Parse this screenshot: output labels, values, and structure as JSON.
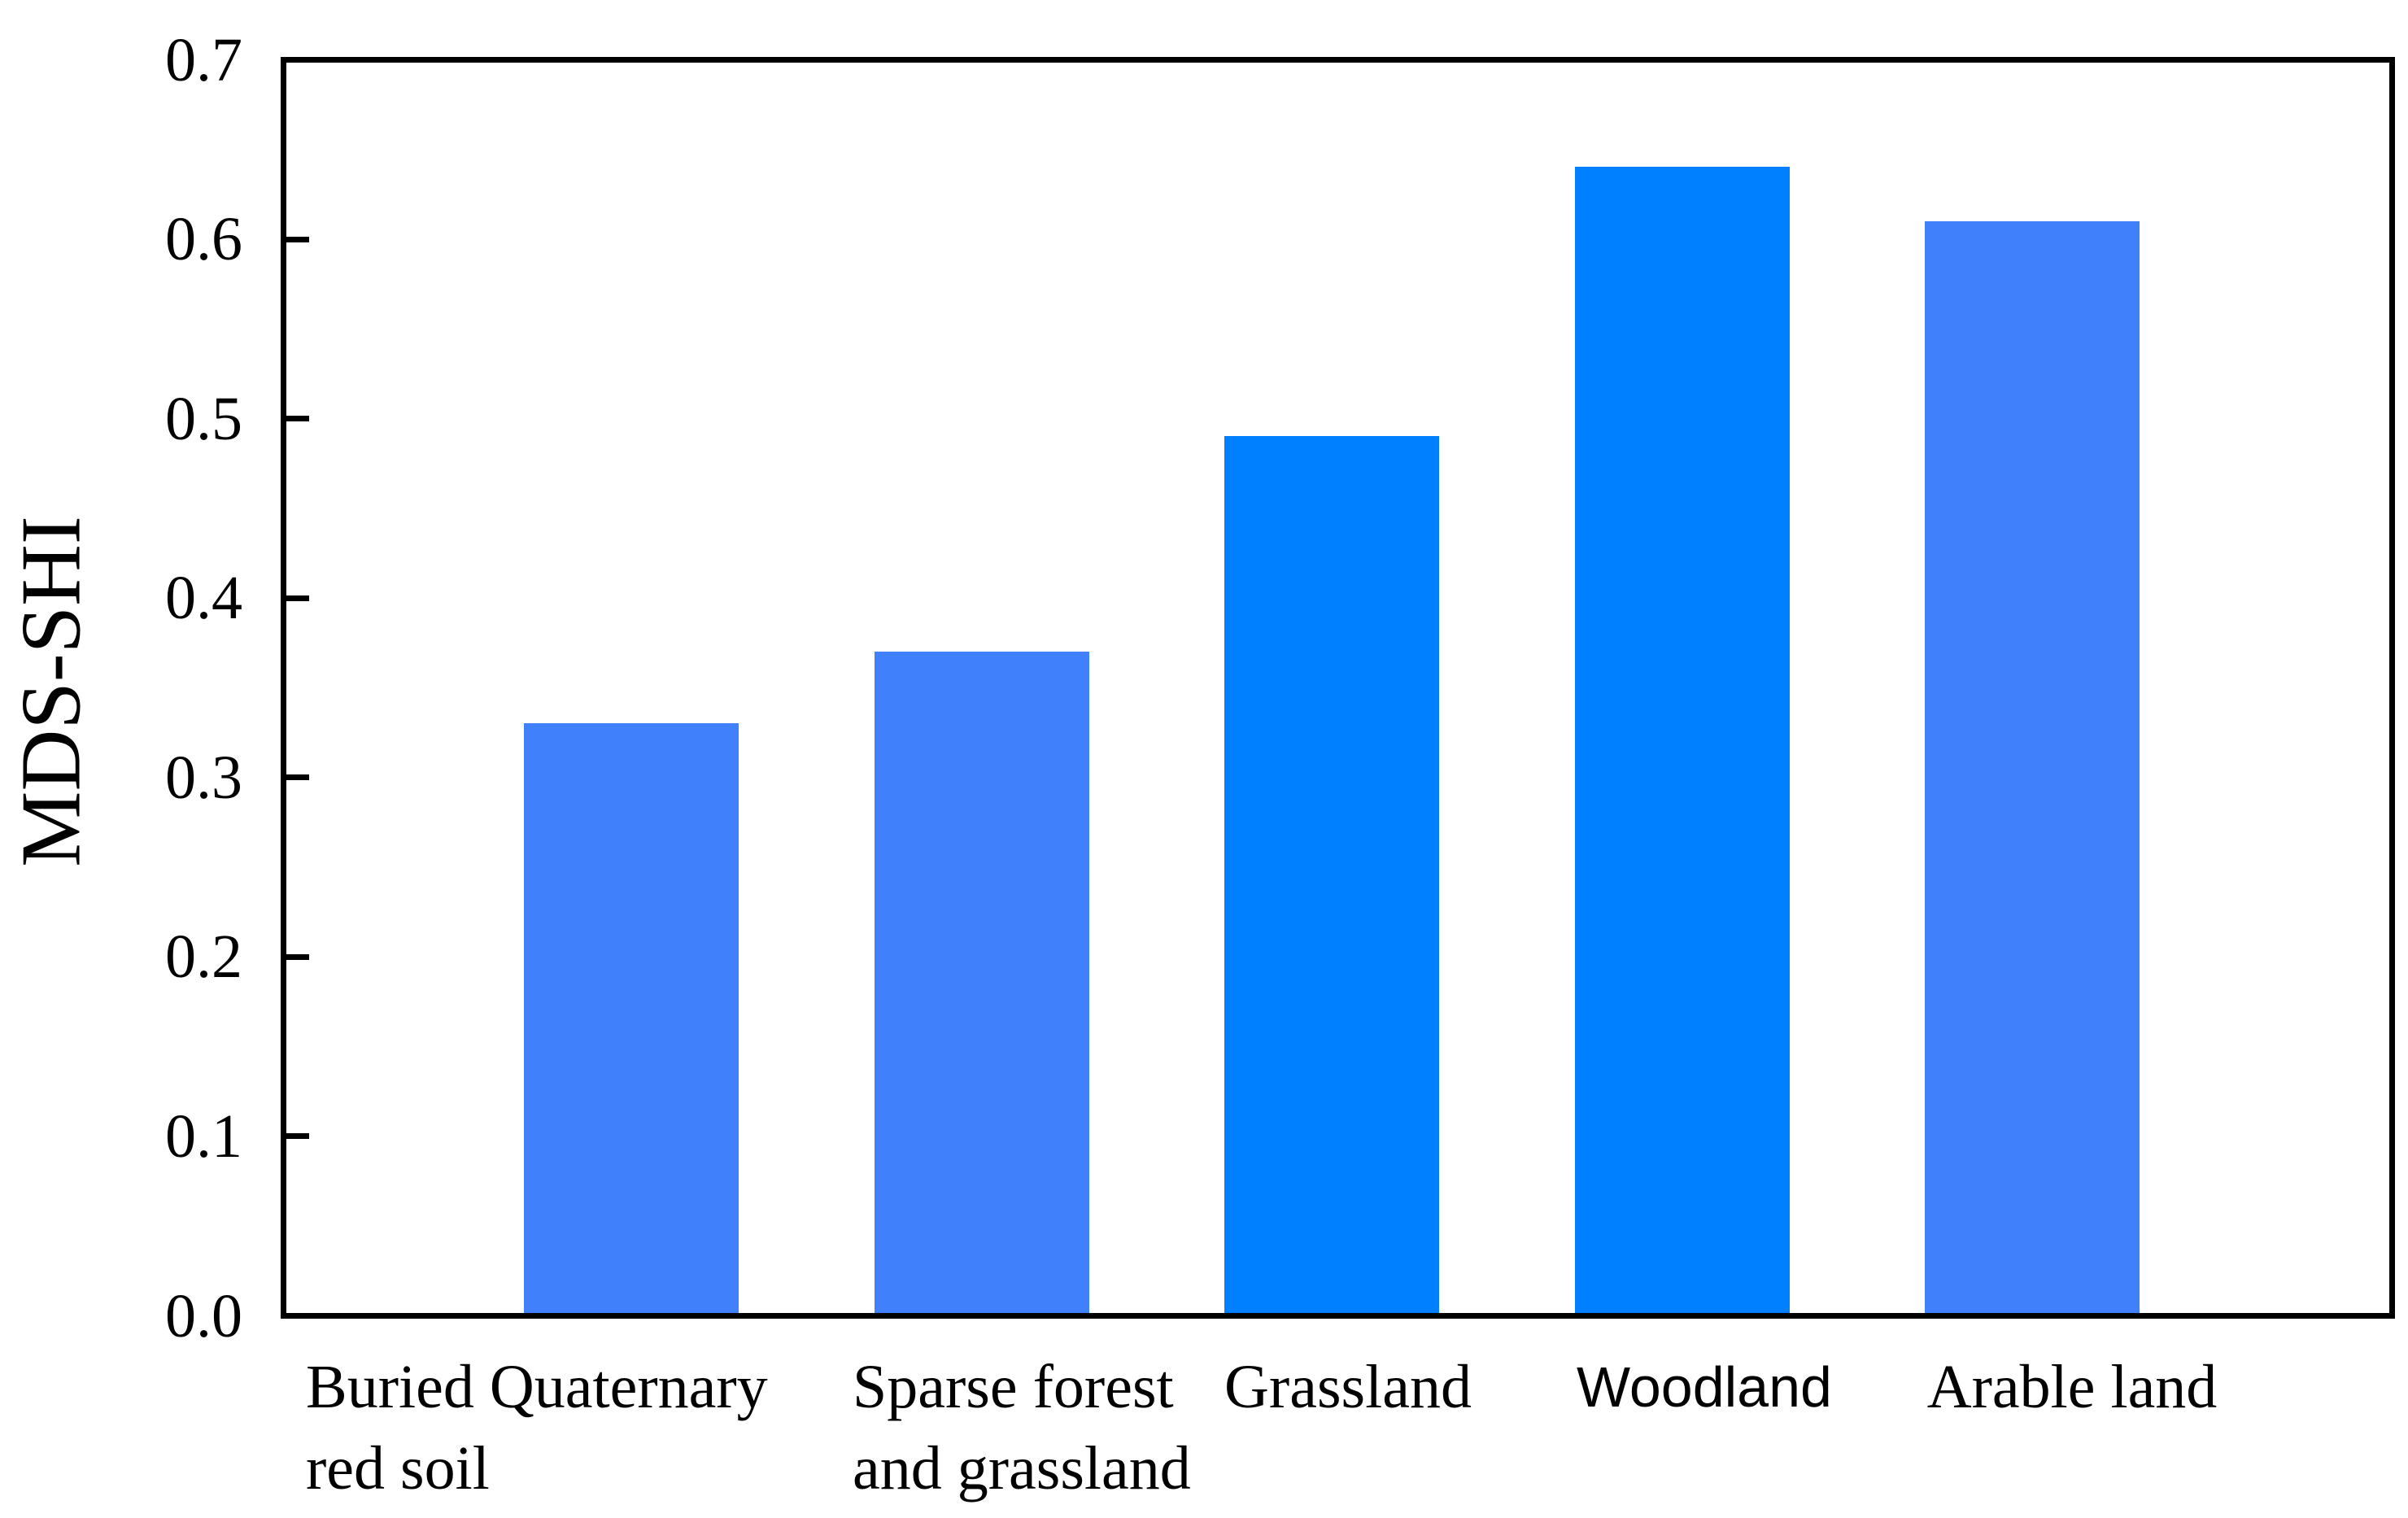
{
  "figure": {
    "background": "#ffffff",
    "axis_color": "#000000",
    "text_color": "#000000"
  },
  "chart_data": {
    "type": "bar",
    "title": "",
    "xlabel": "",
    "ylabel": "MDS-SHI",
    "categories": [
      "Buried Quaternary red soil",
      "Sparse forest and grassland",
      "Grassland",
      "Woodland",
      "Arable land"
    ],
    "category_label_lines": [
      [
        "Buried Quaternary",
        "red soil"
      ],
      [
        "Sparse forest",
        "and grassland"
      ],
      [
        "Grassland"
      ],
      [
        "Woodland"
      ],
      [
        "Arable land"
      ]
    ],
    "values": [
      0.33,
      0.37,
      0.49,
      0.64,
      0.61
    ],
    "ylim": [
      0.0,
      0.7
    ],
    "yticks": [
      0.0,
      0.1,
      0.2,
      0.3,
      0.4,
      0.5,
      0.6,
      0.7
    ],
    "ytick_labels": [
      "0.0",
      "0.1",
      "0.2",
      "0.3",
      "0.4",
      "0.5",
      "0.6",
      "0.7"
    ],
    "bar_colors": [
      "#4180fb",
      "#4180fb",
      "#0080ff",
      "#0080ff",
      "#4180fb"
    ],
    "grid": false,
    "legend": "none"
  }
}
